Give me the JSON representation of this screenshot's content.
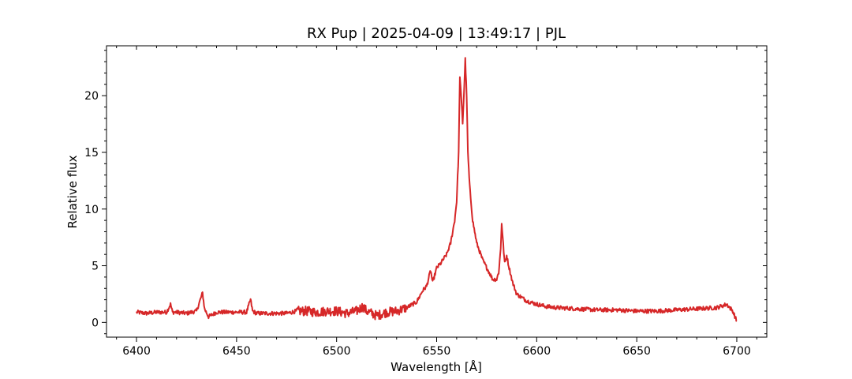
{
  "chart_data": {
    "type": "line",
    "title": "RX Pup | 2025-04-09 | 13:49:17 | PJL",
    "xlabel": "Wavelength [Å]",
    "ylabel": "Relative flux",
    "xlim": [
      6385,
      6715
    ],
    "ylim": [
      -1.3,
      24.4
    ],
    "x_ticks": [
      6400,
      6450,
      6500,
      6550,
      6600,
      6650,
      6700
    ],
    "x_tick_labels": [
      "6400",
      "6450",
      "6500",
      "6550",
      "6600",
      "6650",
      "6700"
    ],
    "y_ticks": [
      0,
      5,
      10,
      15,
      20
    ],
    "y_tick_labels": [
      "0",
      "5",
      "10",
      "15",
      "20"
    ],
    "grid": false,
    "series": [
      {
        "color": "#d62728",
        "points": [
          [
            6400,
            0.9
          ],
          [
            6405,
            0.8
          ],
          [
            6410,
            0.9
          ],
          [
            6415,
            0.9
          ],
          [
            6417,
            1.6
          ],
          [
            6418,
            0.9
          ],
          [
            6420,
            0.9
          ],
          [
            6425,
            0.8
          ],
          [
            6430,
            1.0
          ],
          [
            6433,
            2.6
          ],
          [
            6434,
            1.2
          ],
          [
            6436,
            0.5
          ],
          [
            6440,
            0.9
          ],
          [
            6445,
            0.9
          ],
          [
            6450,
            0.9
          ],
          [
            6455,
            0.9
          ],
          [
            6457,
            2.0
          ],
          [
            6458,
            1.0
          ],
          [
            6460,
            0.8
          ],
          [
            6465,
            0.8
          ],
          [
            6470,
            0.8
          ],
          [
            6475,
            0.8
          ],
          [
            6480,
            1.0
          ],
          [
            6485,
            1.0
          ],
          [
            6490,
            0.9
          ],
          [
            6495,
            1.0
          ],
          [
            6500,
            1.0
          ],
          [
            6505,
            0.8
          ],
          [
            6510,
            1.0
          ],
          [
            6513,
            1.4
          ],
          [
            6515,
            1.0
          ],
          [
            6520,
            0.6
          ],
          [
            6525,
            0.9
          ],
          [
            6530,
            1.0
          ],
          [
            6535,
            1.3
          ],
          [
            6540,
            1.8
          ],
          [
            6543,
            2.8
          ],
          [
            6545,
            3.2
          ],
          [
            6547,
            4.6
          ],
          [
            6548,
            3.5
          ],
          [
            6550,
            4.8
          ],
          [
            6552,
            5.2
          ],
          [
            6555,
            6.0
          ],
          [
            6557,
            7.0
          ],
          [
            6559,
            9.0
          ],
          [
            6560,
            10.7
          ],
          [
            6561,
            15.0
          ],
          [
            6561.6,
            21.8
          ],
          [
            6562.2,
            20.0
          ],
          [
            6563,
            17.6
          ],
          [
            6563.6,
            20.0
          ],
          [
            6564.3,
            23.2
          ],
          [
            6565,
            20.0
          ],
          [
            6565.6,
            15.0
          ],
          [
            6566.5,
            12.0
          ],
          [
            6568,
            9.0
          ],
          [
            6570,
            7.0
          ],
          [
            6573,
            5.5
          ],
          [
            6576,
            4.5
          ],
          [
            6578,
            3.8
          ],
          [
            6580,
            3.8
          ],
          [
            6581,
            4.4
          ],
          [
            6582,
            6.5
          ],
          [
            6582.5,
            8.8
          ],
          [
            6583.3,
            6.8
          ],
          [
            6584,
            5.2
          ],
          [
            6585,
            5.9
          ],
          [
            6586,
            5.0
          ],
          [
            6588,
            3.5
          ],
          [
            6590,
            2.5
          ],
          [
            6595,
            1.9
          ],
          [
            6600,
            1.6
          ],
          [
            6605,
            1.4
          ],
          [
            6610,
            1.3
          ],
          [
            6620,
            1.2
          ],
          [
            6630,
            1.1
          ],
          [
            6640,
            1.1
          ],
          [
            6650,
            1.0
          ],
          [
            6660,
            1.0
          ],
          [
            6670,
            1.1
          ],
          [
            6680,
            1.2
          ],
          [
            6690,
            1.3
          ],
          [
            6695,
            1.6
          ],
          [
            6698,
            1.0
          ],
          [
            6700,
            0.1
          ]
        ]
      }
    ]
  }
}
